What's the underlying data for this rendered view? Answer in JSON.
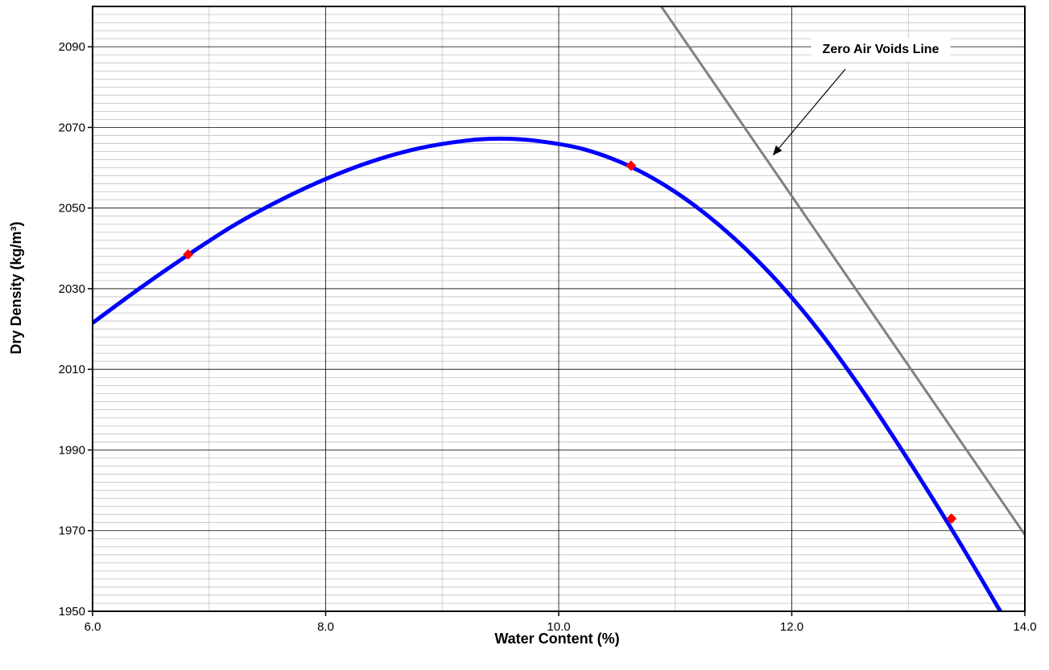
{
  "chart_data": {
    "type": "line",
    "title": "",
    "xlabel": "Water Content (%)",
    "ylabel": "Dry Density (kg/m³)",
    "xlim": [
      6.0,
      14.0
    ],
    "ylim": [
      1950,
      2100
    ],
    "x_ticks": [
      "6.0",
      "8.0",
      "10.0",
      "12.0",
      "14.0"
    ],
    "y_ticks": [
      "1950",
      "1970",
      "1990",
      "2010",
      "2030",
      "2050",
      "2070",
      "2090"
    ],
    "x_major_step": 2.0,
    "x_minor_step": 1.0,
    "y_major_step": 20,
    "y_minor_step": 2,
    "grid": true,
    "legend": "none",
    "colors": {
      "compaction_curve": "#0000ff",
      "zero_air_voids": "#808080",
      "measured_points": "#ff0000",
      "major_grid": "#000000",
      "minor_grid": "#bfbfbf"
    },
    "series": [
      {
        "kind": "smooth-line",
        "x": [
          6.0,
          6.4,
          6.8,
          7.2,
          7.6,
          8.0,
          8.4,
          8.8,
          9.2,
          9.5,
          9.8,
          10.2,
          10.6,
          11.0,
          11.4,
          11.8,
          12.2,
          12.6,
          13.0,
          13.4,
          13.8
        ],
        "y": [
          2021.5,
          2030.0,
          2038.0,
          2045.5,
          2051.8,
          2057.2,
          2061.6,
          2064.8,
          2066.7,
          2067.2,
          2066.7,
          2064.7,
          2060.5,
          2054.0,
          2045.2,
          2034.2,
          2020.8,
          2005.0,
          1987.5,
          1969.0,
          1949.5
        ]
      },
      {
        "kind": "points",
        "x": [
          6.82,
          10.62,
          13.37
        ],
        "y": [
          2038.5,
          2060.5,
          1973.0
        ]
      },
      {
        "kind": "straight-line",
        "x": [
          10.88,
          14.0
        ],
        "y": [
          2100.0,
          1969.0
        ]
      }
    ],
    "annotations": [
      {
        "text": "Zero Air Voids Line",
        "arrow_to": {
          "x": 11.8,
          "y": 2064
        }
      }
    ]
  }
}
